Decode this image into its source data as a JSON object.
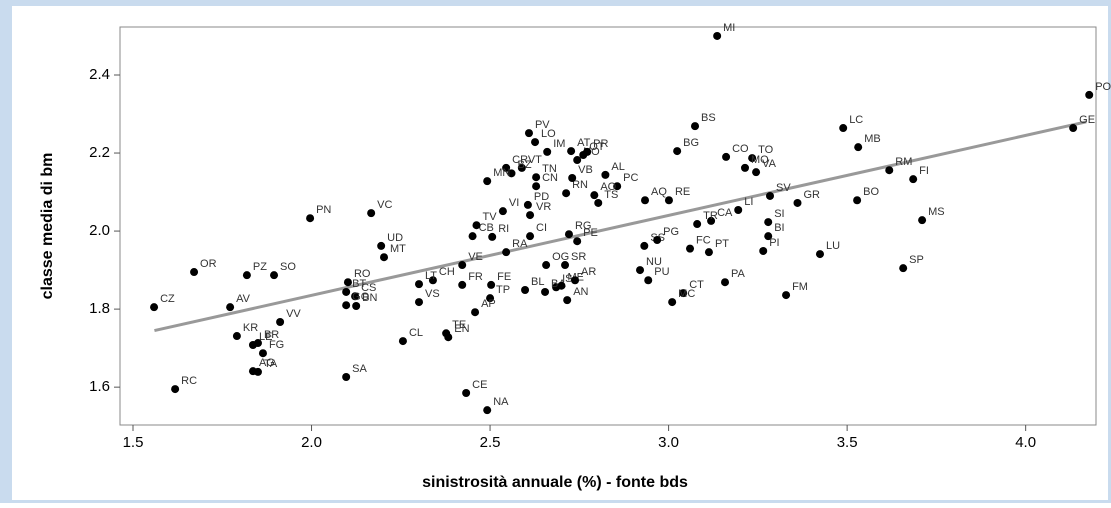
{
  "chart_data": {
    "type": "scatter",
    "xlabel": "sinistrosità annuale (%) - fonte bds",
    "ylabel": "classe media di bm",
    "color": "#000000",
    "xlim": [
      1.4636,
      4.197
    ],
    "ylim": [
      1.503,
      2.523
    ],
    "xticks": [
      1.5,
      {
        "value": 2,
        "label": "2.0"
      },
      2.5,
      {
        "value": 3,
        "label": "3.0"
      },
      3.5,
      {
        "value": 4,
        "label": "4.0"
      }
    ],
    "yticks": [
      1.6,
      1.8,
      {
        "value": 2,
        "label": "2.0"
      },
      2.2,
      2.4
    ],
    "point_labels": [
      "MI",
      "PO",
      "GE",
      "LC",
      "MB",
      "RM",
      "FI",
      "BO",
      "MS",
      "SP",
      "LU",
      "FM",
      "GR",
      "SV",
      "SI",
      "BI",
      "PI",
      "TO",
      "VA",
      "MO",
      "CO",
      "BS",
      "BG",
      "LI",
      "CA",
      "TR",
      "PT",
      "FC",
      "PA",
      "CT",
      "MC",
      "PU",
      "NU",
      "SS",
      "PG",
      "AQ",
      "RE",
      "PC",
      "TS",
      "AO",
      "AL",
      "RN",
      "VB",
      "NO",
      "OT",
      "AT",
      "PR",
      "IM",
      "LO",
      "PV",
      "CR",
      "VT",
      "TN",
      "BZ",
      "MN",
      "CN",
      "VI",
      "PD",
      "VR",
      "CI",
      "RG",
      "PE",
      "RA",
      "RI",
      "CB",
      "TV",
      "OG",
      "SR",
      "IS",
      "BL",
      "AN",
      "BA",
      "ME",
      "AR",
      "TP",
      "FR",
      "FE",
      "CH",
      "VE",
      "LT",
      "VS",
      "AP",
      "TE",
      "EN",
      "CL",
      "CE",
      "NA",
      "SA",
      "RC",
      "AG",
      "TA",
      "FG",
      "LE",
      "BR",
      "KR",
      "VV",
      "AV",
      "CZ",
      "OR",
      "PZ",
      "SO",
      "PN",
      "VC",
      "UD",
      "MT",
      "RO",
      "BT",
      "CS",
      "GO",
      "BN"
    ],
    "x": [
      3.136,
      4.178,
      4.133,
      3.489,
      3.531,
      3.618,
      3.685,
      3.528,
      3.71,
      3.657,
      3.424,
      3.329,
      3.361,
      3.284,
      3.279,
      3.279,
      3.265,
      3.234,
      3.245,
      3.214,
      3.161,
      3.074,
      3.024,
      3.195,
      3.119,
      3.08,
      3.113,
      3.06,
      3.158,
      3.041,
      3.01,
      2.943,
      2.92,
      2.932,
      2.968,
      2.934,
      3.001,
      2.856,
      2.803,
      2.792,
      2.823,
      2.713,
      2.73,
      2.744,
      2.761,
      2.727,
      2.772,
      2.66,
      2.626,
      2.609,
      2.545,
      2.589,
      2.629,
      2.56,
      2.492,
      2.629,
      2.536,
      2.606,
      2.612,
      2.612,
      2.721,
      2.744,
      2.545,
      2.506,
      2.451,
      2.462,
      2.657,
      2.71,
      2.685,
      2.598,
      2.716,
      2.654,
      2.7,
      2.738,
      2.5,
      2.422,
      2.503,
      2.34,
      2.422,
      2.301,
      2.301,
      2.458,
      2.377,
      2.383,
      2.256,
      2.433,
      2.492,
      2.097,
      1.618,
      1.836,
      1.85,
      1.864,
      1.836,
      1.85,
      1.791,
      1.912,
      1.772,
      1.559,
      1.671,
      1.819,
      1.895,
      1.996,
      2.167,
      2.195,
      2.203,
      2.102,
      2.097,
      2.122,
      2.097,
      2.125
    ],
    "values": [
      2.5,
      2.349,
      2.264,
      2.264,
      2.215,
      2.156,
      2.133,
      2.079,
      2.028,
      1.905,
      1.941,
      1.836,
      2.072,
      2.09,
      2.023,
      1.987,
      1.949,
      2.187,
      2.151,
      2.162,
      2.19,
      2.269,
      2.205,
      2.054,
      2.026,
      2.018,
      1.946,
      1.955,
      1.869,
      1.841,
      1.818,
      1.874,
      1.9,
      1.962,
      1.977,
      2.079,
      2.079,
      2.115,
      2.072,
      2.092,
      2.144,
      2.097,
      2.136,
      2.182,
      2.195,
      2.205,
      2.203,
      2.203,
      2.228,
      2.251,
      2.162,
      2.162,
      2.138,
      2.148,
      2.128,
      2.115,
      2.051,
      2.067,
      2.041,
      1.987,
      1.992,
      1.974,
      1.946,
      1.985,
      1.987,
      2.015,
      1.913,
      1.913,
      1.856,
      1.849,
      1.823,
      1.844,
      1.86,
      1.874,
      1.828,
      1.862,
      1.862,
      1.874,
      1.913,
      1.864,
      1.818,
      1.792,
      1.738,
      1.728,
      1.718,
      1.585,
      1.541,
      1.626,
      1.595,
      1.641,
      1.639,
      1.687,
      1.708,
      1.713,
      1.731,
      1.767,
      1.805,
      1.805,
      1.895,
      1.887,
      1.887,
      2.033,
      2.046,
      1.962,
      1.933,
      1.869,
      1.844,
      1.833,
      1.81,
      1.808
    ],
    "fit_line": {
      "color": "#999999",
      "x": [
        1.56,
        4.17
      ],
      "values": [
        1.745,
        2.28
      ]
    }
  }
}
